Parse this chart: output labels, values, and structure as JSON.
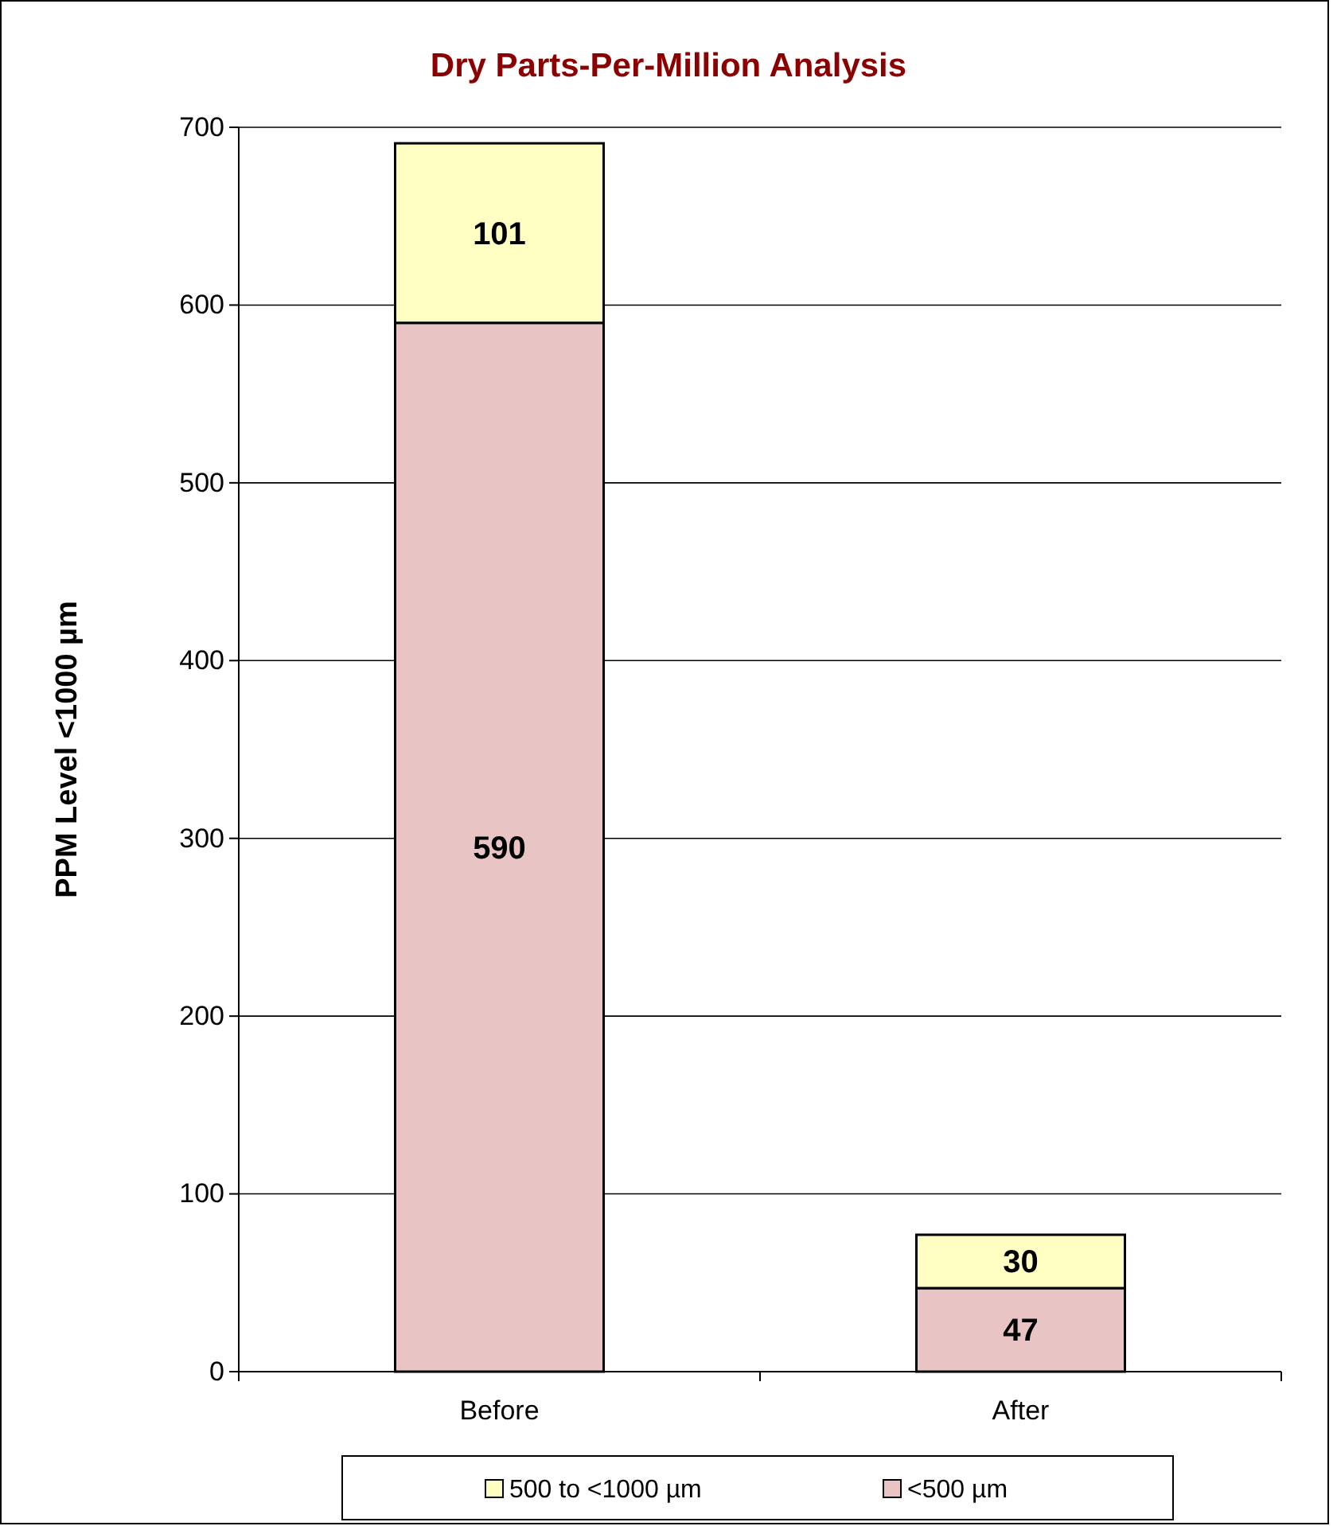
{
  "chart_data": {
    "type": "bar",
    "title": "Dry Parts-Per-Million Analysis",
    "ylabel": "PPM Level <1000 µm",
    "categories": [
      "Before",
      "After"
    ],
    "stacked": true,
    "series": [
      {
        "name": "<500 µm",
        "color": "#e8c4c4",
        "values": [
          590,
          47
        ]
      },
      {
        "name": "500 to <1000 µm",
        "color": "#ffffc4",
        "values": [
          101,
          30
        ]
      }
    ],
    "ylim": [
      0,
      700
    ],
    "yticks": [
      0,
      100,
      200,
      300,
      400,
      500,
      600,
      700
    ],
    "grid": "y",
    "legend": "bottom",
    "data_labels": true
  }
}
